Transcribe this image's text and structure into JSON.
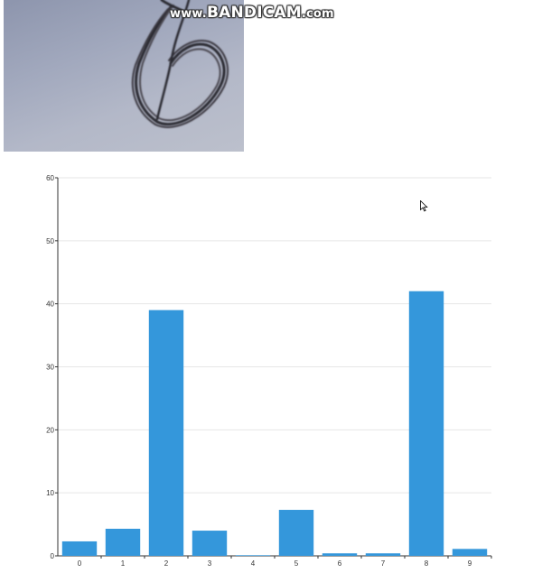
{
  "watermark": {
    "prefix": "www.",
    "brand": "BANDICAM",
    "suffix": ".com"
  },
  "webcam": {
    "icon": "webcam-preview-icon"
  },
  "colors": {
    "bar": "#3497db",
    "grid": "#e6e6e6",
    "axis": "#333333"
  },
  "chart_data": {
    "type": "bar",
    "categories": [
      "0",
      "1",
      "2",
      "3",
      "4",
      "5",
      "6",
      "7",
      "8",
      "9"
    ],
    "values": [
      2.3,
      4.3,
      39,
      4.0,
      0.1,
      7.3,
      0.4,
      0.4,
      42,
      1.1
    ],
    "title": "",
    "xlabel": "",
    "ylabel": "",
    "ylim": [
      0,
      60
    ],
    "yticks": [
      "0",
      "10",
      "20",
      "30",
      "40",
      "50",
      "60"
    ],
    "grid": true,
    "legend": "none"
  }
}
